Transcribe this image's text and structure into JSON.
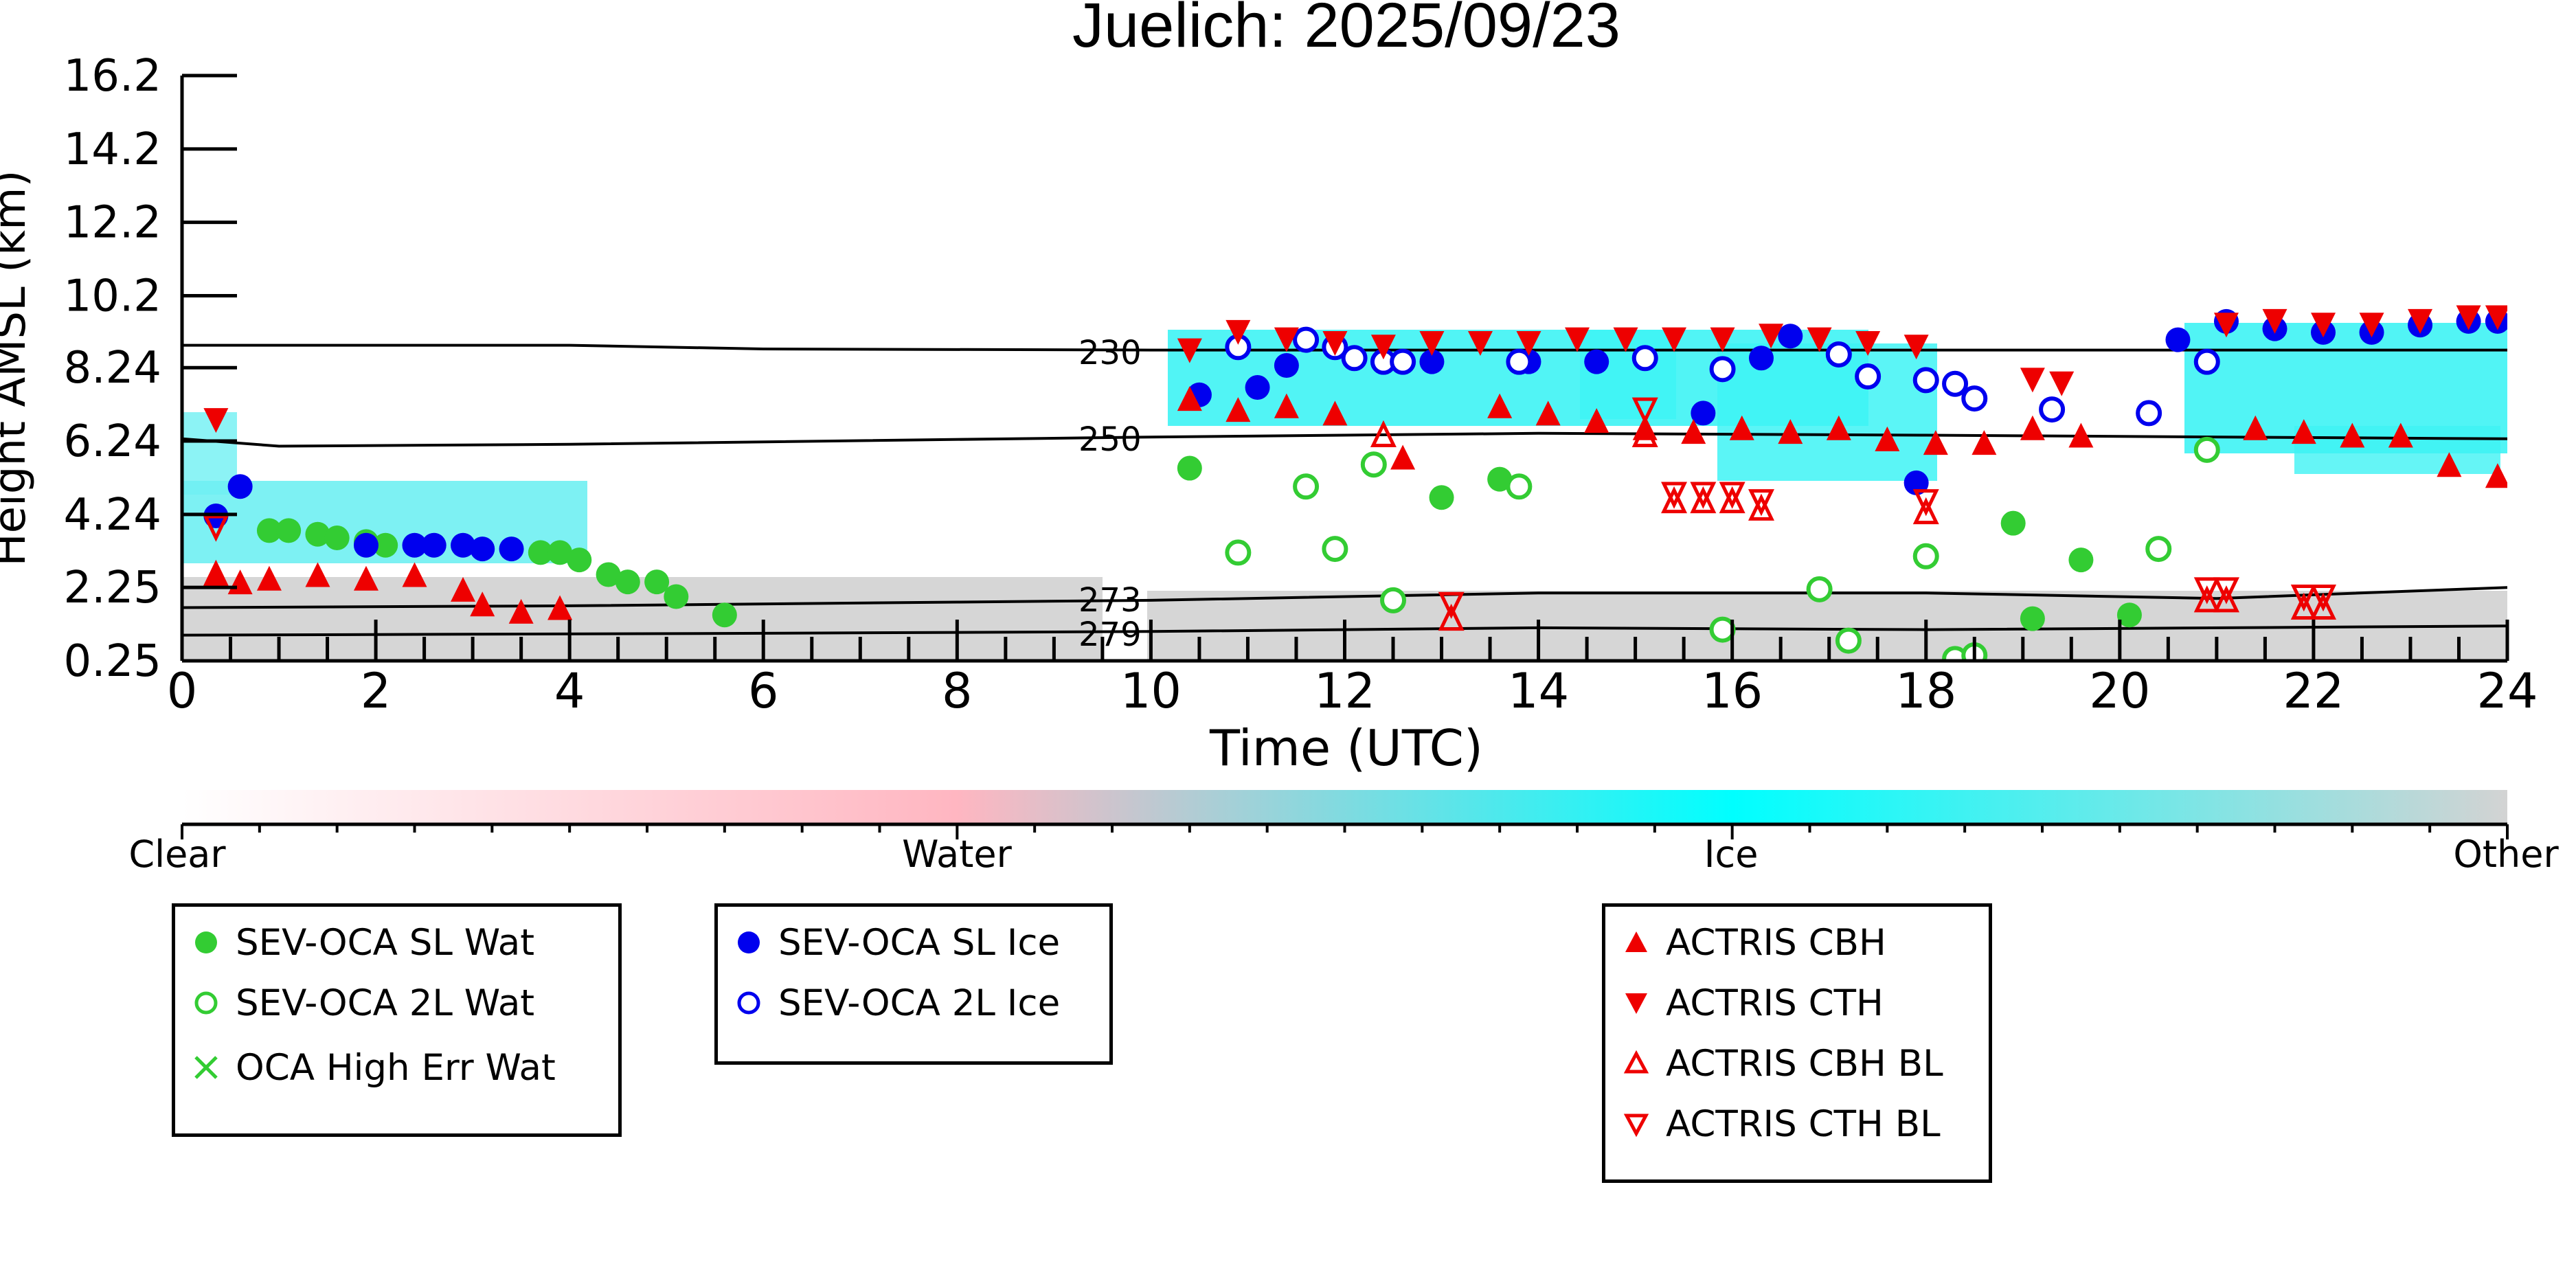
{
  "chart_data": {
    "type": "scatter",
    "title": "Juelich: 2025/09/23",
    "xlabel": "Time (UTC)",
    "ylabel": "Height AMSL (km)",
    "xlim": [
      0,
      24
    ],
    "ylim": [
      0.25,
      16.2
    ],
    "x_ticks": [
      "0",
      "2",
      "4",
      "6",
      "8",
      "10",
      "12",
      "14",
      "16",
      "18",
      "20",
      "22",
      "24"
    ],
    "y_ticks": [
      "16.2",
      "14.2",
      "12.2",
      "10.2",
      "8.24",
      "6.24",
      "4.24",
      "2.25",
      "0.25"
    ],
    "grid": false,
    "colorbar": {
      "labels": [
        "Clear",
        "Water",
        "Ice",
        "Other"
      ],
      "colors": [
        "#ffffff",
        "#ffb6c1",
        "#00ffff",
        "#d3d3d3"
      ]
    },
    "isotherm_labels": [
      "230",
      "250",
      "273",
      "279"
    ],
    "isotherms": [
      {
        "label": "230",
        "points": [
          [
            0,
            8.85
          ],
          [
            4,
            8.85
          ],
          [
            6,
            8.75
          ],
          [
            10,
            8.72
          ],
          [
            14,
            8.72
          ],
          [
            18,
            8.72
          ],
          [
            24,
            8.72
          ]
        ]
      },
      {
        "label": "250",
        "points": [
          [
            0,
            6.3
          ],
          [
            1,
            6.1
          ],
          [
            4,
            6.15
          ],
          [
            10,
            6.35
          ],
          [
            14,
            6.45
          ],
          [
            18,
            6.4
          ],
          [
            24,
            6.3
          ]
        ]
      },
      {
        "label": "273",
        "points": [
          [
            0,
            1.7
          ],
          [
            4,
            1.75
          ],
          [
            8,
            1.85
          ],
          [
            10,
            1.9
          ],
          [
            14,
            2.1
          ],
          [
            18,
            2.1
          ],
          [
            21,
            1.95
          ],
          [
            24,
            2.25
          ]
        ]
      },
      {
        "label": "279",
        "points": [
          [
            0,
            0.95
          ],
          [
            6,
            1.0
          ],
          [
            10,
            1.05
          ],
          [
            14,
            1.15
          ],
          [
            18,
            1.1
          ],
          [
            24,
            1.2
          ]
        ]
      }
    ],
    "series": [
      {
        "name": "SEV-OCA SL Wat",
        "color": "#33cc33",
        "marker": "filled-circle",
        "x": [
          0.9,
          1.1,
          1.4,
          1.6,
          1.9,
          2.1,
          3.7,
          3.9,
          4.1,
          4.4,
          4.6,
          4.9,
          5.1,
          5.6,
          10.4,
          13.0,
          13.6,
          18.9,
          19.1,
          19.6,
          20.1
        ],
        "y": [
          3.8,
          3.8,
          3.7,
          3.6,
          3.5,
          3.4,
          3.2,
          3.2,
          3.0,
          2.6,
          2.4,
          2.4,
          2.0,
          1.5,
          5.5,
          4.7,
          5.2,
          4.0,
          1.4,
          3.0,
          1.5
        ]
      },
      {
        "name": "SEV-OCA 2L Wat",
        "color": "#33cc33",
        "marker": "open-circle",
        "x": [
          10.9,
          11.6,
          11.9,
          12.3,
          12.5,
          13.8,
          15.9,
          16.9,
          17.2,
          18.0,
          18.3,
          18.5,
          20.4,
          20.9
        ],
        "y": [
          3.2,
          5.0,
          3.3,
          5.6,
          1.9,
          5.0,
          1.1,
          2.2,
          0.8,
          3.1,
          0.3,
          0.4,
          3.3,
          6.0
        ]
      },
      {
        "name": "OCA High Err Wat",
        "color": "#33cc33",
        "marker": "x",
        "x": [],
        "y": []
      },
      {
        "name": "SEV-OCA SL Ice",
        "color": "#0000ee",
        "marker": "filled-circle",
        "x": [
          0.35,
          0.6,
          1.9,
          2.4,
          2.6,
          2.9,
          3.1,
          3.4,
          10.5,
          11.1,
          11.4,
          12.9,
          13.9,
          14.6,
          15.7,
          16.3,
          16.6,
          17.9,
          20.6,
          21.1,
          21.6,
          22.1,
          22.6,
          23.1,
          23.6,
          23.9
        ],
        "y": [
          4.2,
          5.0,
          3.4,
          3.4,
          3.4,
          3.4,
          3.3,
          3.3,
          7.5,
          7.7,
          8.3,
          8.4,
          8.4,
          8.4,
          7.0,
          8.5,
          9.1,
          5.1,
          9.0,
          9.5,
          9.3,
          9.2,
          9.2,
          9.4,
          9.5,
          9.5
        ]
      },
      {
        "name": "SEV-OCA 2L Ice",
        "color": "#0000ee",
        "marker": "open-circle",
        "x": [
          10.9,
          11.6,
          11.9,
          12.1,
          12.4,
          12.6,
          13.8,
          15.1,
          15.9,
          17.1,
          17.4,
          18.0,
          18.3,
          18.5,
          19.3,
          20.3,
          20.9
        ],
        "y": [
          8.8,
          9.0,
          8.8,
          8.5,
          8.4,
          8.4,
          8.4,
          8.5,
          8.2,
          8.6,
          8.0,
          7.9,
          7.8,
          7.4,
          7.1,
          7.0,
          8.4
        ]
      },
      {
        "name": "ACTRIS CBH",
        "color": "#ee0000",
        "marker": "triangle-up",
        "x": [
          0.35,
          0.6,
          0.9,
          1.4,
          1.9,
          2.4,
          2.9,
          3.1,
          3.5,
          3.9,
          10.4,
          10.9,
          11.4,
          11.9,
          12.6,
          13.6,
          14.1,
          14.6,
          15.1,
          15.6,
          16.1,
          16.6,
          17.1,
          17.6,
          18.1,
          18.6,
          19.1,
          19.6,
          21.4,
          21.9,
          22.4,
          22.9,
          23.4,
          23.9
        ],
        "y": [
          2.6,
          2.4,
          2.5,
          2.6,
          2.5,
          2.6,
          2.2,
          1.8,
          1.6,
          1.7,
          7.4,
          7.1,
          7.2,
          7.0,
          5.8,
          7.2,
          7.0,
          6.8,
          6.6,
          6.5,
          6.6,
          6.5,
          6.6,
          6.3,
          6.2,
          6.2,
          6.6,
          6.4,
          6.6,
          6.5,
          6.4,
          6.4,
          5.6,
          5.3
        ]
      },
      {
        "name": "ACTRIS CTH",
        "color": "#ee0000",
        "marker": "triangle-down",
        "x": [
          0.35,
          10.4,
          10.9,
          11.4,
          11.9,
          12.4,
          12.9,
          13.4,
          13.9,
          14.4,
          14.9,
          15.4,
          15.9,
          16.4,
          16.9,
          17.4,
          17.9,
          19.1,
          19.4,
          21.1,
          21.6,
          22.1,
          22.6,
          23.1,
          23.6,
          23.9
        ],
        "y": [
          6.8,
          8.7,
          9.2,
          9.0,
          8.9,
          8.8,
          8.9,
          8.9,
          8.9,
          9.0,
          9.0,
          9.0,
          9.0,
          9.1,
          9.0,
          8.9,
          8.8,
          7.9,
          7.8,
          9.4,
          9.5,
          9.4,
          9.4,
          9.5,
          9.6,
          9.6
        ]
      },
      {
        "name": "ACTRIS CBH BL",
        "color": "#ee0000",
        "marker": "open-triangle-up",
        "x": [
          0.35,
          12.4,
          13.1,
          15.1,
          15.4,
          15.7,
          16.0,
          16.3,
          18.0,
          20.9,
          21.1,
          21.9,
          22.1
        ],
        "y": [
          2.6,
          6.4,
          1.4,
          6.4,
          4.6,
          4.6,
          4.6,
          4.4,
          4.3,
          1.9,
          1.9,
          1.7,
          1.7
        ]
      },
      {
        "name": "ACTRIS CTH BL",
        "color": "#ee0000",
        "marker": "open-triangle-down",
        "x": [
          0.35,
          13.1,
          15.1,
          15.4,
          15.7,
          16.0,
          16.3,
          18.0,
          20.9,
          21.1,
          21.9,
          22.1
        ],
        "y": [
          3.9,
          1.8,
          7.1,
          4.8,
          4.8,
          4.8,
          4.6,
          4.6,
          2.2,
          2.2,
          2.0,
          2.0
        ]
      }
    ]
  },
  "legend": {
    "wat_items": [
      {
        "label": "SEV-OCA SL Wat",
        "icon": "filled-circle-icon",
        "color": "#33cc33"
      },
      {
        "label": "SEV-OCA 2L Wat",
        "icon": "open-circle-icon",
        "color": "#33cc33"
      },
      {
        "label": "OCA High Err Wat",
        "icon": "x-icon",
        "color": "#33cc33"
      }
    ],
    "ice_items": [
      {
        "label": "SEV-OCA SL Ice",
        "icon": "filled-circle-icon",
        "color": "#0000ee"
      },
      {
        "label": "SEV-OCA 2L Ice",
        "icon": "open-circle-icon",
        "color": "#0000ee"
      }
    ],
    "actris_items": [
      {
        "label": "ACTRIS CBH",
        "icon": "triangle-up-icon",
        "color": "#ee0000"
      },
      {
        "label": "ACTRIS CTH",
        "icon": "triangle-down-icon",
        "color": "#ee0000"
      },
      {
        "label": "ACTRIS CBH BL",
        "icon": "open-triangle-up-icon",
        "color": "#ee0000"
      },
      {
        "label": "ACTRIS CTH BL",
        "icon": "open-triangle-down-icon",
        "color": "#ee0000"
      }
    ]
  }
}
